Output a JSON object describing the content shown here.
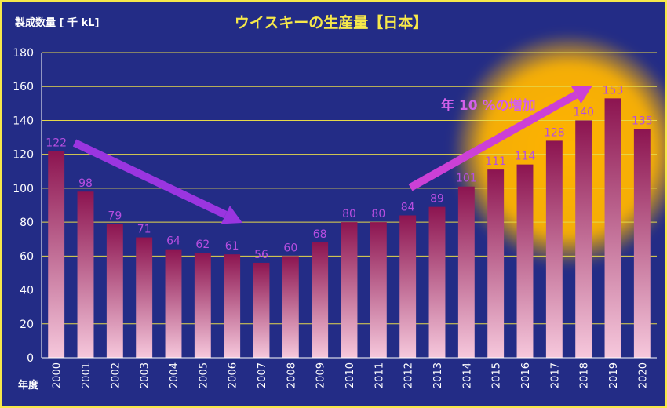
{
  "chart_data": {
    "type": "bar",
    "title": "ウイスキーの生産量【日本】",
    "ylabel": "製成数量 [ 千 kL]",
    "xlabel": "年度",
    "categories": [
      "2000",
      "2001",
      "2002",
      "2003",
      "2004",
      "2005",
      "2006",
      "2007",
      "2008",
      "2009",
      "2010",
      "2011",
      "2012",
      "2013",
      "2014",
      "2015",
      "2016",
      "2017",
      "2018",
      "2019",
      "2020"
    ],
    "values": [
      122,
      98,
      79,
      71,
      64,
      62,
      61,
      56,
      60,
      68,
      80,
      80,
      84,
      89,
      101,
      111,
      114,
      128,
      140,
      153,
      135
    ],
    "ylim": [
      0,
      180
    ],
    "yticks": [
      0,
      20,
      40,
      60,
      80,
      100,
      120,
      140,
      160,
      180
    ],
    "grid": true,
    "legend": "none",
    "annotations": [
      {
        "text": "年 10 %の増加"
      }
    ],
    "colors": {
      "background": "#232c86",
      "border": "#f6e84a",
      "grid": "#e6d84a",
      "bar_top": "#8c1450",
      "bar_bottom": "#f6c8dc",
      "data_label": "#b64ee0",
      "title": "#f6e84a",
      "axis_text": "#ffffff",
      "arrow_down": "#9a35e0",
      "arrow_up": "#cc40d6",
      "annotation": "#d460ea",
      "glow": "#ffb400"
    }
  }
}
